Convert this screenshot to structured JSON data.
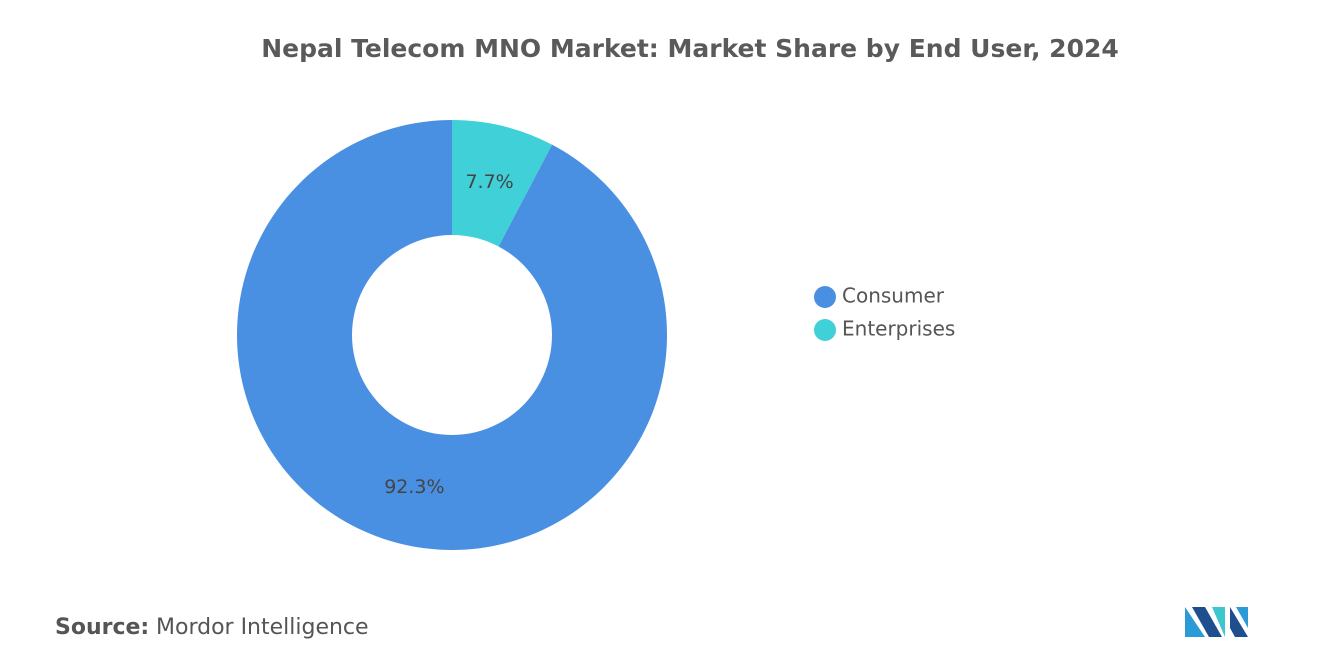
{
  "chart_data": {
    "type": "donut",
    "title": "Nepal Telecom MNO Market: Market Share by End User, 2024",
    "categories": [
      "Consumer",
      "Enterprises"
    ],
    "values": [
      92.3,
      7.7
    ],
    "value_labels": [
      "92.3%",
      "7.7%"
    ],
    "colors": [
      "#4a90e2",
      "#40d0d8"
    ],
    "legend": "right",
    "source_label": "Source:",
    "source": "Mordor Intelligence"
  }
}
